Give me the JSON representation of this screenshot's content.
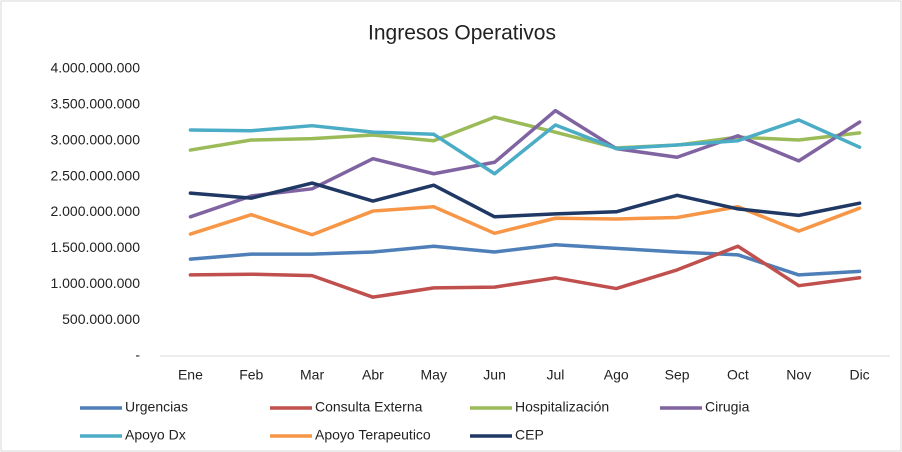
{
  "chart_data": {
    "type": "line",
    "title": "Ingresos Operativos",
    "categories": [
      "Ene",
      "Feb",
      "Mar",
      "Abr",
      "May",
      "Jun",
      "Jul",
      "Ago",
      "Sep",
      "Oct",
      "Nov",
      "Dic"
    ],
    "ylim": [
      0,
      4000000000
    ],
    "yticks": [
      {
        "value": 0,
        "label": "-"
      },
      {
        "value": 500000000,
        "label": "500.000.000"
      },
      {
        "value": 1000000000,
        "label": "1.000.000.000"
      },
      {
        "value": 1500000000,
        "label": "1.500.000.000"
      },
      {
        "value": 2000000000,
        "label": "2.000.000.000"
      },
      {
        "value": 2500000000,
        "label": "2.500.000.000"
      },
      {
        "value": 3000000000,
        "label": "3.000.000.000"
      },
      {
        "value": 3500000000,
        "label": "3.500.000.000"
      },
      {
        "value": 4000000000,
        "label": "4.000.000.000"
      }
    ],
    "grid": false,
    "legend": "bottom",
    "series": [
      {
        "name": "Urgencias",
        "color": "#4e7fb8",
        "values": [
          1350000000,
          1420000000,
          1420000000,
          1450000000,
          1530000000,
          1450000000,
          1550000000,
          1500000000,
          1450000000,
          1410000000,
          1130000000,
          1180000000
        ]
      },
      {
        "name": "Consulta Externa",
        "color": "#c0504d",
        "values": [
          1130000000,
          1140000000,
          1120000000,
          820000000,
          950000000,
          960000000,
          1090000000,
          940000000,
          1200000000,
          1530000000,
          980000000,
          1090000000
        ]
      },
      {
        "name": "Hospitalización",
        "color": "#9bbb59",
        "values": [
          2870000000,
          3010000000,
          3030000000,
          3080000000,
          3000000000,
          3330000000,
          3120000000,
          2900000000,
          2940000000,
          3050000000,
          3010000000,
          3110000000
        ]
      },
      {
        "name": "Cirugia",
        "color": "#8064a2",
        "values": [
          1940000000,
          2230000000,
          2330000000,
          2750000000,
          2540000000,
          2700000000,
          3420000000,
          2890000000,
          2770000000,
          3070000000,
          2720000000,
          3260000000
        ]
      },
      {
        "name": "Apoyo Dx",
        "color": "#4bacc6",
        "values": [
          3150000000,
          3140000000,
          3210000000,
          3120000000,
          3090000000,
          2540000000,
          3220000000,
          2890000000,
          2940000000,
          3000000000,
          3290000000,
          2910000000
        ]
      },
      {
        "name": "Apoyo Terapeutico",
        "color": "#f79646",
        "values": [
          1700000000,
          1970000000,
          1690000000,
          2020000000,
          2080000000,
          1710000000,
          1920000000,
          1910000000,
          1930000000,
          2080000000,
          1740000000,
          2060000000
        ]
      },
      {
        "name": "CEP",
        "color": "#1f3864",
        "values": [
          2270000000,
          2200000000,
          2410000000,
          2160000000,
          2380000000,
          1940000000,
          1980000000,
          2010000000,
          2240000000,
          2050000000,
          1960000000,
          2130000000
        ]
      }
    ]
  }
}
